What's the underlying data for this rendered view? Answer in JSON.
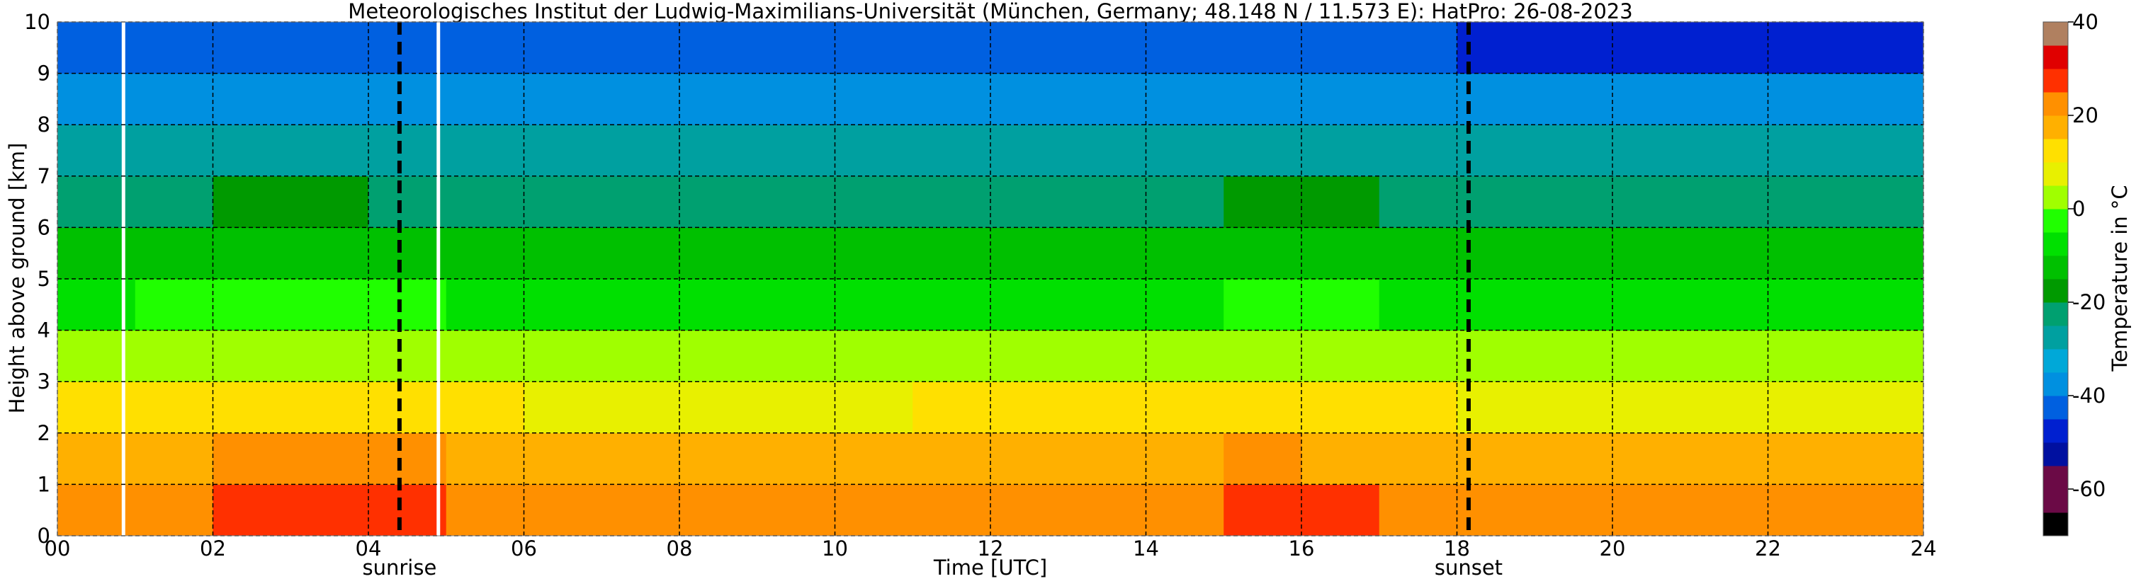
{
  "chart_data": {
    "type": "heatmap",
    "title": "Meteorologisches Institut der Ludwig-Maximilians-Universität (München, Germany; 48.148 N / 11.573 E):    HatPro: 26-08-2023",
    "x_label": "Time [UTC]",
    "y_label": "Height above ground [km]",
    "colorbar_label": "Temperature in °C",
    "x": [
      0.5,
      1.5,
      2.5,
      3.5,
      4.5,
      5.5,
      6.5,
      7.5,
      8.5,
      9.5,
      10.5,
      11.5,
      12.5,
      13.5,
      14.5,
      15.5,
      16.5,
      17.5,
      18.5,
      19.5,
      20.5,
      21.5,
      22.5,
      23.5
    ],
    "y": [
      0.5,
      1.5,
      2.5,
      3.5,
      4.5,
      5.5,
      6.5,
      7.5,
      8.5,
      9.5
    ],
    "z": [
      [
        22,
        24,
        28,
        28,
        27,
        22,
        21,
        21,
        21,
        22,
        22,
        22,
        23,
        23,
        24,
        29,
        27,
        22,
        21,
        21,
        21,
        21,
        20,
        20
      ],
      [
        16,
        17,
        21,
        21,
        20,
        16,
        15,
        15,
        15,
        15,
        15,
        16,
        16,
        16,
        17,
        21,
        19,
        16,
        15,
        15,
        15,
        15,
        15,
        15
      ],
      [
        10,
        11,
        14,
        14,
        13,
        10,
        9,
        9,
        9,
        9,
        9,
        10,
        10,
        10,
        11,
        13,
        12,
        10,
        9,
        9,
        9,
        9,
        9,
        9
      ],
      [
        3,
        3,
        5,
        5,
        4,
        3,
        2,
        2,
        2,
        2,
        2,
        3,
        3,
        3,
        3,
        4,
        4,
        3,
        2,
        2,
        2,
        2,
        2,
        2
      ],
      [
        -6,
        -5,
        -4,
        -4,
        -5,
        -6,
        -6,
        -6,
        -6,
        -6,
        -6,
        -6,
        -6,
        -6,
        -6,
        -5,
        -5,
        -6,
        -6,
        -6,
        -6,
        -6,
        -6,
        -6
      ],
      [
        -13,
        -13,
        -12,
        -12,
        -13,
        -13,
        -13,
        -13,
        -13,
        -13,
        -13,
        -13,
        -13,
        -13,
        -13,
        -12,
        -12,
        -13,
        -13,
        -13,
        -13,
        -13,
        -13,
        -13
      ],
      [
        -21,
        -21,
        -20,
        -20,
        -21,
        -21,
        -21,
        -21,
        -21,
        -21,
        -21,
        -21,
        -21,
        -21,
        -22,
        -20,
        -20,
        -21,
        -21,
        -21,
        -21,
        -21,
        -21,
        -21
      ],
      [
        -28,
        -28,
        -28,
        -28,
        -28,
        -28,
        -28,
        -28,
        -28,
        -28,
        -28,
        -28,
        -28,
        -28,
        -30,
        -28,
        -28,
        -28,
        -28,
        -28,
        -28,
        -28,
        -28,
        -28
      ],
      [
        -36,
        -36,
        -36,
        -36,
        -36,
        -36,
        -36,
        -36,
        -36,
        -36,
        -36,
        -36,
        -36,
        -36,
        -37,
        -36,
        -36,
        -36,
        -36,
        -36,
        -36,
        -36,
        -36,
        -36
      ],
      [
        -44,
        -45,
        -44,
        -44,
        -44,
        -44,
        -44,
        -44,
        -44,
        -44,
        -44,
        -44,
        -44,
        -44,
        -45,
        -44,
        -44,
        -44,
        -46,
        -46,
        -46,
        -46,
        -46,
        -46
      ]
    ],
    "xlim": [
      0,
      24
    ],
    "ylim": [
      0,
      10
    ],
    "zlim": [
      -70,
      40
    ],
    "xticks": [
      {
        "value": 0,
        "label": "00"
      },
      {
        "value": 2,
        "label": "02"
      },
      {
        "value": 4,
        "label": "04"
      },
      {
        "value": 6,
        "label": "06"
      },
      {
        "value": 8,
        "label": "08"
      },
      {
        "value": 10,
        "label": "10"
      },
      {
        "value": 12,
        "label": "12"
      },
      {
        "value": 14,
        "label": "14"
      },
      {
        "value": 16,
        "label": "16"
      },
      {
        "value": 18,
        "label": "18"
      },
      {
        "value": 20,
        "label": "20"
      },
      {
        "value": 22,
        "label": "22"
      },
      {
        "value": 24,
        "label": "24"
      }
    ],
    "yticks": [
      0,
      1,
      2,
      3,
      4,
      5,
      6,
      7,
      8,
      9,
      10
    ],
    "zticks": [
      -60,
      -40,
      -20,
      0,
      20,
      40
    ],
    "grid": true,
    "colors": [
      "#000000",
      "#6b0a46",
      "#6b0a46",
      "#0010a0",
      "#0020d0",
      "#0060e0",
      "#0090e0",
      "#00a8d8",
      "#00a0a0",
      "#00a070",
      "#009a00",
      "#00c000",
      "#00e000",
      "#20ff00",
      "#a0ff00",
      "#e8f000",
      "#ffe000",
      "#ffb000",
      "#ff9000",
      "#ff3000",
      "#e00000",
      "#b08060"
    ],
    "missing_times": [
      0.85,
      4.9
    ],
    "annotations": [
      {
        "text": "sunrise",
        "x": 4.4
      },
      {
        "text": "sunset",
        "x": 18.15
      }
    ]
  }
}
